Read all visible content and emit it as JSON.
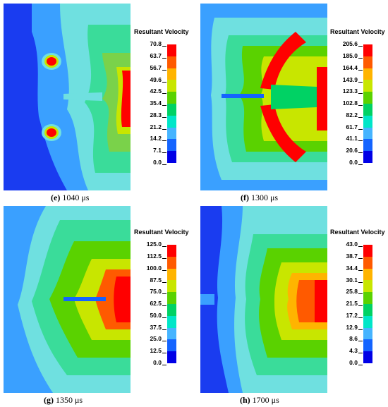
{
  "panels": [
    {
      "letter": "(e)",
      "time": "1040 μs",
      "legend_title": "Resultant Velocity",
      "ticks": [
        "70.8",
        "63.7",
        "56.7",
        "49.6",
        "42.5",
        "35.4",
        "28.3",
        "21.2",
        "14.2",
        "7.1",
        "0.0"
      ]
    },
    {
      "letter": "(f)",
      "time": "1300 μs",
      "legend_title": "Resultant Velocity",
      "ticks": [
        "205.6",
        "185.0",
        "164.4",
        "143.9",
        "123.3",
        "102.8",
        "82.2",
        "61.7",
        "41.1",
        "20.6",
        "0.0"
      ]
    },
    {
      "letter": "(g)",
      "time": "1350 μs",
      "legend_title": "Resultant Velocity",
      "ticks": [
        "125.0",
        "112.5",
        "100.0",
        "87.5",
        "75.0",
        "62.5",
        "50.0",
        "37.5",
        "25.0",
        "12.5",
        "0.0"
      ]
    },
    {
      "letter": "(h)",
      "time": "1700 μs",
      "legend_title": "Resultant Velocity",
      "ticks": [
        "43.0",
        "38.7",
        "34.4",
        "30.1",
        "25.8",
        "21.5",
        "17.2",
        "12.9",
        "8.6",
        "4.3",
        "0.0"
      ]
    }
  ],
  "colormap": [
    "#ff0000",
    "#ff5a00",
    "#ffb400",
    "#c8e600",
    "#5ad200",
    "#00d264",
    "#00e6c8",
    "#46b4ff",
    "#1464ff",
    "#0000e6"
  ]
}
